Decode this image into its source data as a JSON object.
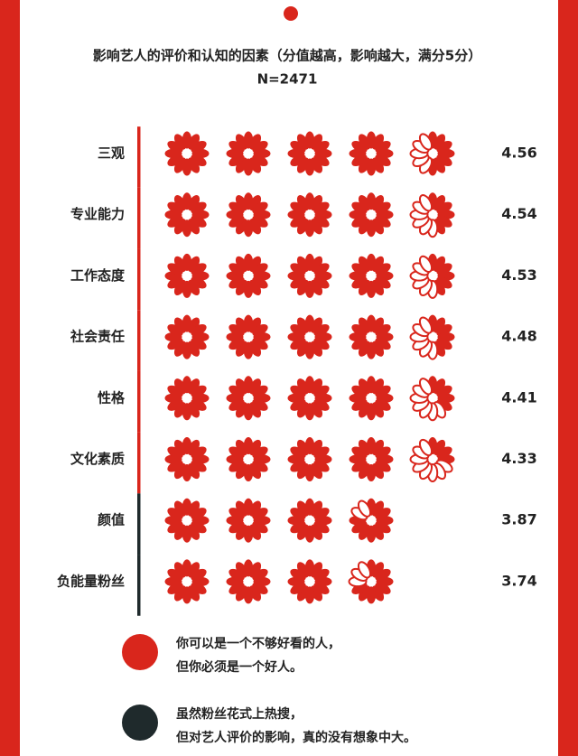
{
  "chart_data": {
    "type": "pictograph",
    "title": "影响艺人的评价和认知的因素（分值越高，影响越大，满分5分）",
    "subtitle": "N=2471",
    "categories": [
      "三观",
      "专业能力",
      "工作态度",
      "社会责任",
      "性格",
      "文化素质",
      "颜值",
      "负能量粉丝"
    ],
    "values": [
      4.56,
      4.54,
      4.53,
      4.48,
      4.41,
      4.33,
      3.87,
      3.74
    ],
    "color": "#d9261c",
    "divider_colors": [
      "#d9261c",
      "#d9261c",
      "#d9261c",
      "#d9261c",
      "#d9261c",
      "#d9261c",
      "#1f2a2c",
      "#1f2a2c"
    ],
    "notes": [
      {
        "color": "#d9261c",
        "lines": [
          "你可以是一个不够好看的人，",
          "但你必须是一个好人。"
        ]
      },
      {
        "color": "#1f2a2c",
        "lines": [
          "虽然粉丝花式上热搜，",
          "但对艺人评价的影响，真的没有想象中大。"
        ]
      }
    ]
  }
}
